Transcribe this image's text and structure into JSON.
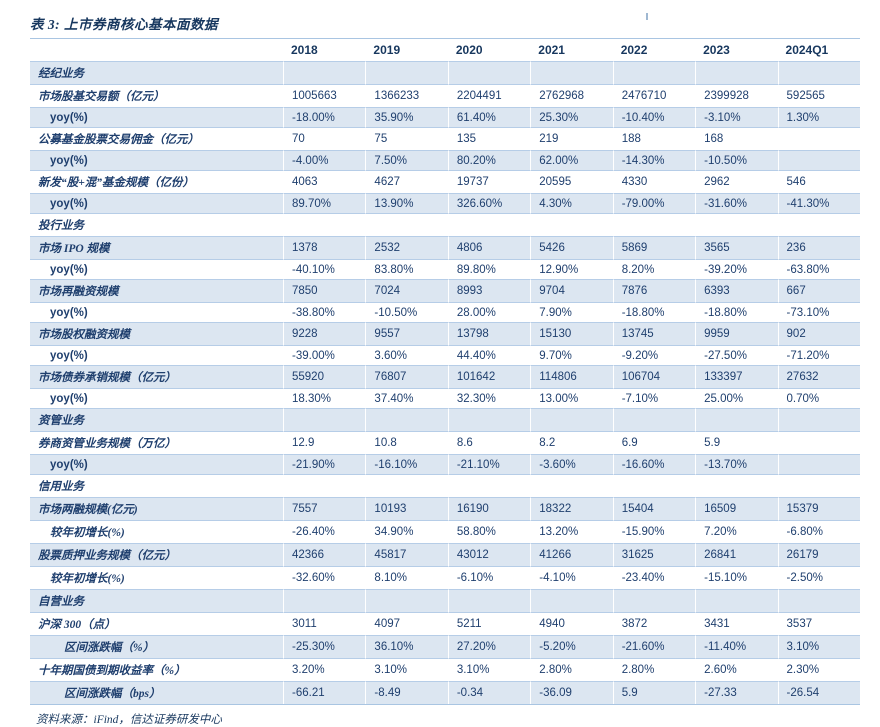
{
  "title": "表 3: 上市券商核心基本面数据",
  "source": "资料来源：iFind，信达证券研发中心",
  "colors": {
    "text_navy": "#17375e",
    "stripe_blue": "#dce6f1",
    "line_blue": "#a9c5e2"
  },
  "table": {
    "columns": [
      "2018",
      "2019",
      "2020",
      "2021",
      "2022",
      "2023",
      "2024Q1"
    ],
    "rows": [
      {
        "label": "经纪业务",
        "type": "section",
        "values": [
          "",
          "",
          "",
          "",
          "",
          "",
          ""
        ]
      },
      {
        "label": "市场股基交易额（亿元）",
        "type": "metric",
        "values": [
          "1005663",
          "1366233",
          "2204491",
          "2762968",
          "2476710",
          "2399928",
          "592565"
        ]
      },
      {
        "label": "yoy(%)",
        "type": "sub1",
        "values": [
          "-18.00%",
          "35.90%",
          "61.40%",
          "25.30%",
          "-10.40%",
          "-3.10%",
          "1.30%"
        ]
      },
      {
        "label": "公募基金股票交易佣金（亿元）",
        "type": "metric",
        "values": [
          "70",
          "75",
          "135",
          "219",
          "188",
          "168",
          ""
        ]
      },
      {
        "label": "yoy(%)",
        "type": "sub1",
        "values": [
          "-4.00%",
          "7.50%",
          "80.20%",
          "62.00%",
          "-14.30%",
          "-10.50%",
          ""
        ]
      },
      {
        "label": "新发“股+混”基金规模（亿份）",
        "type": "metric",
        "values": [
          "4063",
          "4627",
          "19737",
          "20595",
          "4330",
          "2962",
          "546"
        ]
      },
      {
        "label": "yoy(%)",
        "type": "sub1",
        "values": [
          "89.70%",
          "13.90%",
          "326.60%",
          "4.30%",
          "-79.00%",
          "-31.60%",
          "-41.30%"
        ]
      },
      {
        "label": "投行业务",
        "type": "section",
        "values": [
          "",
          "",
          "",
          "",
          "",
          "",
          ""
        ]
      },
      {
        "label": "市场 IPO 规模",
        "type": "metric",
        "values": [
          "1378",
          "2532",
          "4806",
          "5426",
          "5869",
          "3565",
          "236"
        ]
      },
      {
        "label": "yoy(%)",
        "type": "sub1",
        "values": [
          "-40.10%",
          "83.80%",
          "89.80%",
          "12.90%",
          "8.20%",
          "-39.20%",
          "-63.80%"
        ]
      },
      {
        "label": "市场再融资规模",
        "type": "metric",
        "values": [
          "7850",
          "7024",
          "8993",
          "9704",
          "7876",
          "6393",
          "667"
        ]
      },
      {
        "label": "yoy(%)",
        "type": "sub1",
        "values": [
          "-38.80%",
          "-10.50%",
          "28.00%",
          "7.90%",
          "-18.80%",
          "-18.80%",
          "-73.10%"
        ]
      },
      {
        "label": "市场股权融资规模",
        "type": "metric",
        "values": [
          "9228",
          "9557",
          "13798",
          "15130",
          "13745",
          "9959",
          "902"
        ]
      },
      {
        "label": "yoy(%)",
        "type": "sub1",
        "values": [
          "-39.00%",
          "3.60%",
          "44.40%",
          "9.70%",
          "-9.20%",
          "-27.50%",
          "-71.20%"
        ]
      },
      {
        "label": "市场债券承销规模（亿元）",
        "type": "metric",
        "values": [
          "55920",
          "76807",
          "101642",
          "114806",
          "106704",
          "133397",
          "27632"
        ]
      },
      {
        "label": "yoy(%)",
        "type": "sub1",
        "values": [
          "18.30%",
          "37.40%",
          "32.30%",
          "13.00%",
          "-7.10%",
          "25.00%",
          "0.70%"
        ]
      },
      {
        "label": "资管业务",
        "type": "section",
        "values": [
          "",
          "",
          "",
          "",
          "",
          "",
          ""
        ]
      },
      {
        "label": "券商资管业务规模（万亿）",
        "type": "metric",
        "values": [
          "12.9",
          "10.8",
          "8.6",
          "8.2",
          "6.9",
          "5.9",
          ""
        ]
      },
      {
        "label": "yoy(%)",
        "type": "sub1",
        "values": [
          "-21.90%",
          "-16.10%",
          "-21.10%",
          "-3.60%",
          "-16.60%",
          "-13.70%",
          ""
        ]
      },
      {
        "label": "信用业务",
        "type": "section",
        "values": [
          "",
          "",
          "",
          "",
          "",
          "",
          ""
        ]
      },
      {
        "label": "市场两融规模(亿元)",
        "type": "metric",
        "values": [
          "7557",
          "10193",
          "16190",
          "18322",
          "15404",
          "16509",
          "15379"
        ]
      },
      {
        "label": "较年初增长(%)",
        "type": "sub1",
        "values": [
          "-26.40%",
          "34.90%",
          "58.80%",
          "13.20%",
          "-15.90%",
          "7.20%",
          "-6.80%"
        ]
      },
      {
        "label": "股票质押业务规模（亿元）",
        "type": "metric",
        "values": [
          "42366",
          "45817",
          "43012",
          "41266",
          "31625",
          "26841",
          "26179"
        ]
      },
      {
        "label": "较年初增长(%)",
        "type": "sub1",
        "values": [
          "-32.60%",
          "8.10%",
          "-6.10%",
          "-4.10%",
          "-23.40%",
          "-15.10%",
          "-2.50%"
        ]
      },
      {
        "label": "自营业务",
        "type": "section",
        "values": [
          "",
          "",
          "",
          "",
          "",
          "",
          ""
        ]
      },
      {
        "label": "沪深 300（点）",
        "type": "metric",
        "values": [
          "3011",
          "4097",
          "5211",
          "4940",
          "3872",
          "3431",
          "3537"
        ]
      },
      {
        "label": "区间涨跌幅（%）",
        "type": "sub2",
        "values": [
          "-25.30%",
          "36.10%",
          "27.20%",
          "-5.20%",
          "-21.60%",
          "-11.40%",
          "3.10%"
        ]
      },
      {
        "label": "十年期国债到期收益率（%）",
        "type": "metric",
        "values": [
          "3.20%",
          "3.10%",
          "3.10%",
          "2.80%",
          "2.80%",
          "2.60%",
          "2.30%"
        ]
      },
      {
        "label": "区间涨跌幅（bps）",
        "type": "sub2",
        "values": [
          "-66.21",
          "-8.49",
          "-0.34",
          "-36.09",
          "5.9",
          "-27.33",
          "-26.54"
        ]
      }
    ]
  }
}
